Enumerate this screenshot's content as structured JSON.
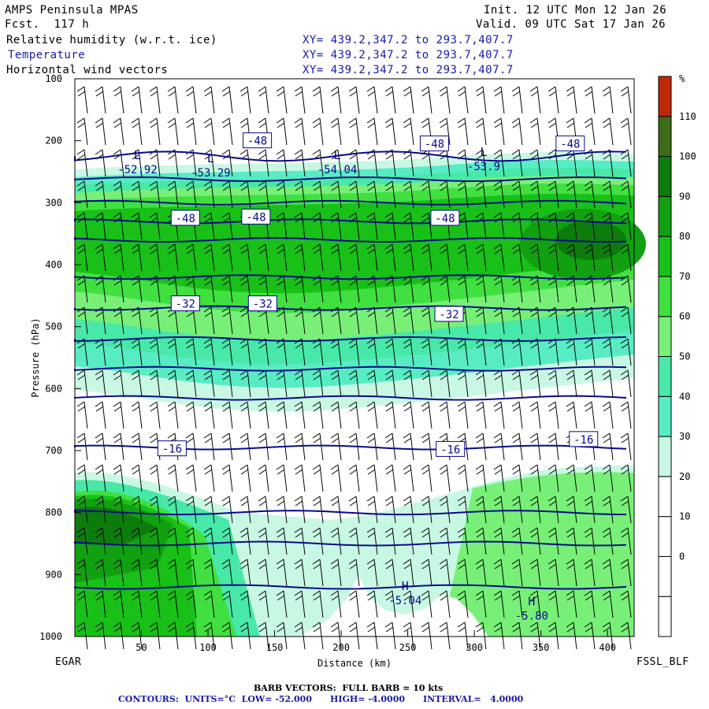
{
  "header": {
    "model": "AMPS Peninsula MPAS",
    "fcst": "Fcst.  117 h",
    "init": "Init. 12 UTC Mon 12 Jan 26",
    "valid": "Valid. 09 UTC Sat 17 Jan 26",
    "fields": [
      {
        "name": "Relative humidity (w.r.t. ice)",
        "xy": "XY= 439.2,347.2 to 293.7,407.7",
        "color": "#000000"
      },
      {
        "name": "Temperature",
        "xy": "XY= 439.2,347.2 to 293.7,407.7",
        "color": "#1a1aa8"
      },
      {
        "name": "Horizontal wind vectors",
        "xy": "XY= 439.2,347.2 to 293.7,407.7",
        "color": "#000000"
      }
    ]
  },
  "footer": {
    "left_station": "EGAR",
    "right_station": "FSSL_BLF",
    "barb_note": "BARB VECTORS:  FULL BARB = 10 kts",
    "contour_note": "CONTOURS:  UNITS=°C  LOW= -52.000      HIGH= -4.0000      INTERVAL=   4.0000"
  },
  "colorbar": {
    "unit": "%",
    "levels": [
      "0",
      "10",
      "20",
      "30",
      "40",
      "50",
      "60",
      "70",
      "80",
      "90",
      "100",
      "110"
    ],
    "colors": [
      "#ffffff",
      "#ffffff",
      "#ffffff",
      "#ffffff",
      "#c8f8e4",
      "#58ecc4",
      "#48e8a8",
      "#78f078",
      "#40e040",
      "#18c018",
      "#10a010",
      "#0c7c0c",
      "#3c6c18",
      "#c02808"
    ]
  },
  "chart_data": {
    "type": "contour",
    "xlabel": "Distance (km)",
    "ylabel": "Pressure (hPa)",
    "xlim": [
      0,
      420
    ],
    "ylim": [
      1000,
      100
    ],
    "xticks": [
      "50",
      "100",
      "150",
      "200",
      "250",
      "300",
      "350",
      "400"
    ],
    "yticks": [
      "100",
      "200",
      "300",
      "400",
      "500",
      "600",
      "700",
      "800",
      "900",
      "1000"
    ],
    "temperature_contours": [
      {
        "value": -48,
        "p": 225
      },
      {
        "value": -52,
        "p": 262
      },
      {
        "value": -48,
        "p": 300
      },
      {
        "value": -44,
        "p": 330
      },
      {
        "value": -40,
        "p": 360
      },
      {
        "value": -36,
        "p": 420
      },
      {
        "value": -32,
        "p": 470
      },
      {
        "value": -28,
        "p": 520
      },
      {
        "value": -24,
        "p": 568
      },
      {
        "value": -20,
        "p": 615
      },
      {
        "value": -16,
        "p": 695
      },
      {
        "value": -12,
        "p": 800
      },
      {
        "value": -8,
        "p": 850
      },
      {
        "value": -4,
        "p": 920
      }
    ],
    "contour_labels": [
      {
        "text": "-48",
        "x": 137,
        "p": 200
      },
      {
        "text": "-48",
        "x": 270,
        "p": 205
      },
      {
        "text": "-48",
        "x": 372,
        "p": 205
      },
      {
        "text": "-48",
        "x": 83,
        "p": 325
      },
      {
        "text": "-48",
        "x": 136,
        "p": 323
      },
      {
        "text": "-48",
        "x": 278,
        "p": 325
      },
      {
        "text": "-32",
        "x": 83,
        "p": 463
      },
      {
        "text": "-32",
        "x": 141,
        "p": 463
      },
      {
        "text": "-32",
        "x": 281,
        "p": 480
      },
      {
        "text": "-16",
        "x": 73,
        "p": 697
      },
      {
        "text": "-16",
        "x": 282,
        "p": 698
      },
      {
        "text": "-16",
        "x": 382,
        "p": 682
      }
    ],
    "extrema": [
      {
        "type": "L",
        "x": 47,
        "p": 245,
        "value": "-52.92"
      },
      {
        "type": "L",
        "x": 102,
        "p": 250,
        "value": "-53.29"
      },
      {
        "type": "L",
        "x": 197,
        "p": 245,
        "value": "-54.04"
      },
      {
        "type": "L",
        "x": 307,
        "p": 240,
        "value": "-53.9"
      },
      {
        "type": "H",
        "x": 248,
        "p": 940,
        "value": "-5.04"
      },
      {
        "type": "H",
        "x": 343,
        "p": 965,
        "value": "-5.80"
      }
    ]
  }
}
